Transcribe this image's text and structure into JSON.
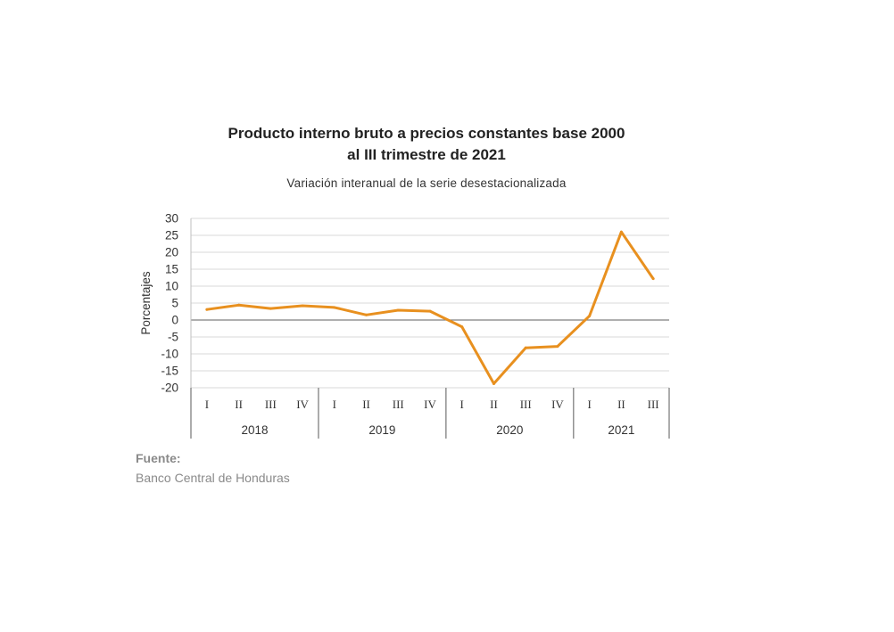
{
  "chart_data": {
    "type": "line",
    "title": [
      "Producto interno bruto a precios constantes base 2000",
      "al III trimestre de 2021"
    ],
    "subtitle": "Variación interanual de la serie desestacionalizada",
    "ylabel": "Porcentajes",
    "ylim": [
      -20,
      30
    ],
    "yticks": [
      30,
      25,
      20,
      15,
      10,
      5,
      0,
      -5,
      -10,
      -15,
      -20
    ],
    "grid": true,
    "quarters": [
      "I",
      "II",
      "III",
      "IV",
      "I",
      "II",
      "III",
      "IV",
      "I",
      "II",
      "III",
      "IV",
      "I",
      "II",
      "III"
    ],
    "years": [
      {
        "label": "2018",
        "quarters": 4
      },
      {
        "label": "2019",
        "quarters": 4
      },
      {
        "label": "2020",
        "quarters": 4
      },
      {
        "label": "2021",
        "quarters": 3
      }
    ],
    "series": [
      {
        "color": "#e8901f",
        "values": [
          3.1,
          4.4,
          3.4,
          4.2,
          3.7,
          1.5,
          2.9,
          2.6,
          -2.0,
          -18.8,
          -8.2,
          -7.8,
          1.2,
          26.0,
          12.2
        ]
      }
    ]
  },
  "source": {
    "label": "Fuente:",
    "value": "Banco Central de Honduras"
  }
}
